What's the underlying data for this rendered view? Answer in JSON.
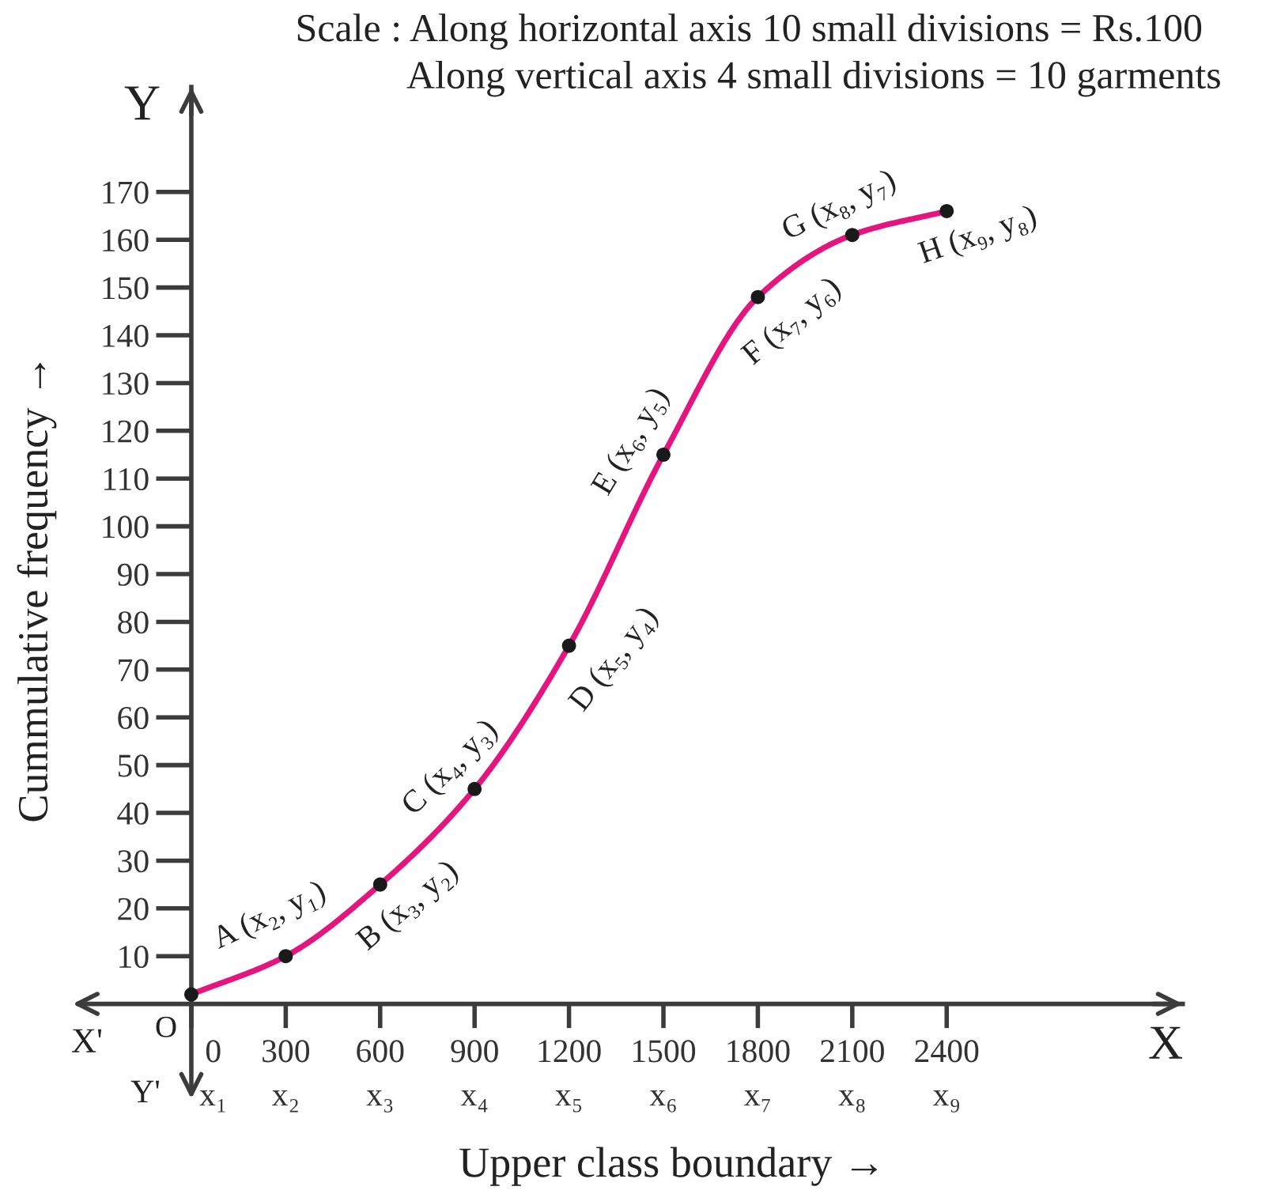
{
  "chart_data": {
    "type": "line",
    "xlabel": "Upper class boundary →",
    "ylabel": "Cummulative frequency →",
    "x": [
      0,
      300,
      600,
      900,
      1200,
      1500,
      1800,
      2100,
      2400
    ],
    "series": [
      {
        "color": "#e4157f",
        "values": [
          2,
          10,
          25,
          45,
          75,
          115,
          148,
          161,
          166
        ]
      }
    ],
    "marker": "circle",
    "line_style": "solid",
    "xlim": [
      0,
      3150
    ],
    "ylim": [
      0,
      192
    ],
    "xticks": [
      {
        "value": 0,
        "label": "0\nx₁"
      },
      {
        "value": 300,
        "label": "300\nx₂"
      },
      {
        "value": 600,
        "label": "600\nx₃"
      },
      {
        "value": 900,
        "label": "900\nx₄"
      },
      {
        "value": 1200,
        "label": "1200\nx₅"
      },
      {
        "value": 1500,
        "label": "1500\nx₆"
      },
      {
        "value": 1800,
        "label": "1800\nx₇"
      },
      {
        "value": 2100,
        "label": "2100\nx₈"
      },
      {
        "value": 2400,
        "label": "2400\nx₉"
      }
    ],
    "yticks": [
      10,
      20,
      30,
      40,
      50,
      60,
      70,
      80,
      90,
      100,
      110,
      120,
      130,
      140,
      150,
      160,
      170
    ],
    "annotations": [
      "Scale : Along horizontal axis 10 small divisions = Rs.100",
      "Along vertical axis 4 small divisions = 10 garments",
      "Y",
      "Y'",
      "X",
      "X'",
      "O",
      {
        "text": "A (x₂, y₁)",
        "x": 300,
        "y": 10
      },
      {
        "text": "B (x₃, y₂)",
        "x": 600,
        "y": 25
      },
      {
        "text": "C (x₄, y₃)",
        "x": 900,
        "y": 45
      },
      {
        "text": "D (x₅, y₄)",
        "x": 1200,
        "y": 75
      },
      {
        "text": "E (x₆, y₅)",
        "x": 1500,
        "y": 115
      },
      {
        "text": "F (x₇, y₆)",
        "x": 1800,
        "y": 148
      },
      {
        "text": "G (x₈, y₇)",
        "x": 2100,
        "y": 161
      },
      {
        "text": "H (x₉, y₈)",
        "x": 2400,
        "y": 166
      }
    ]
  }
}
